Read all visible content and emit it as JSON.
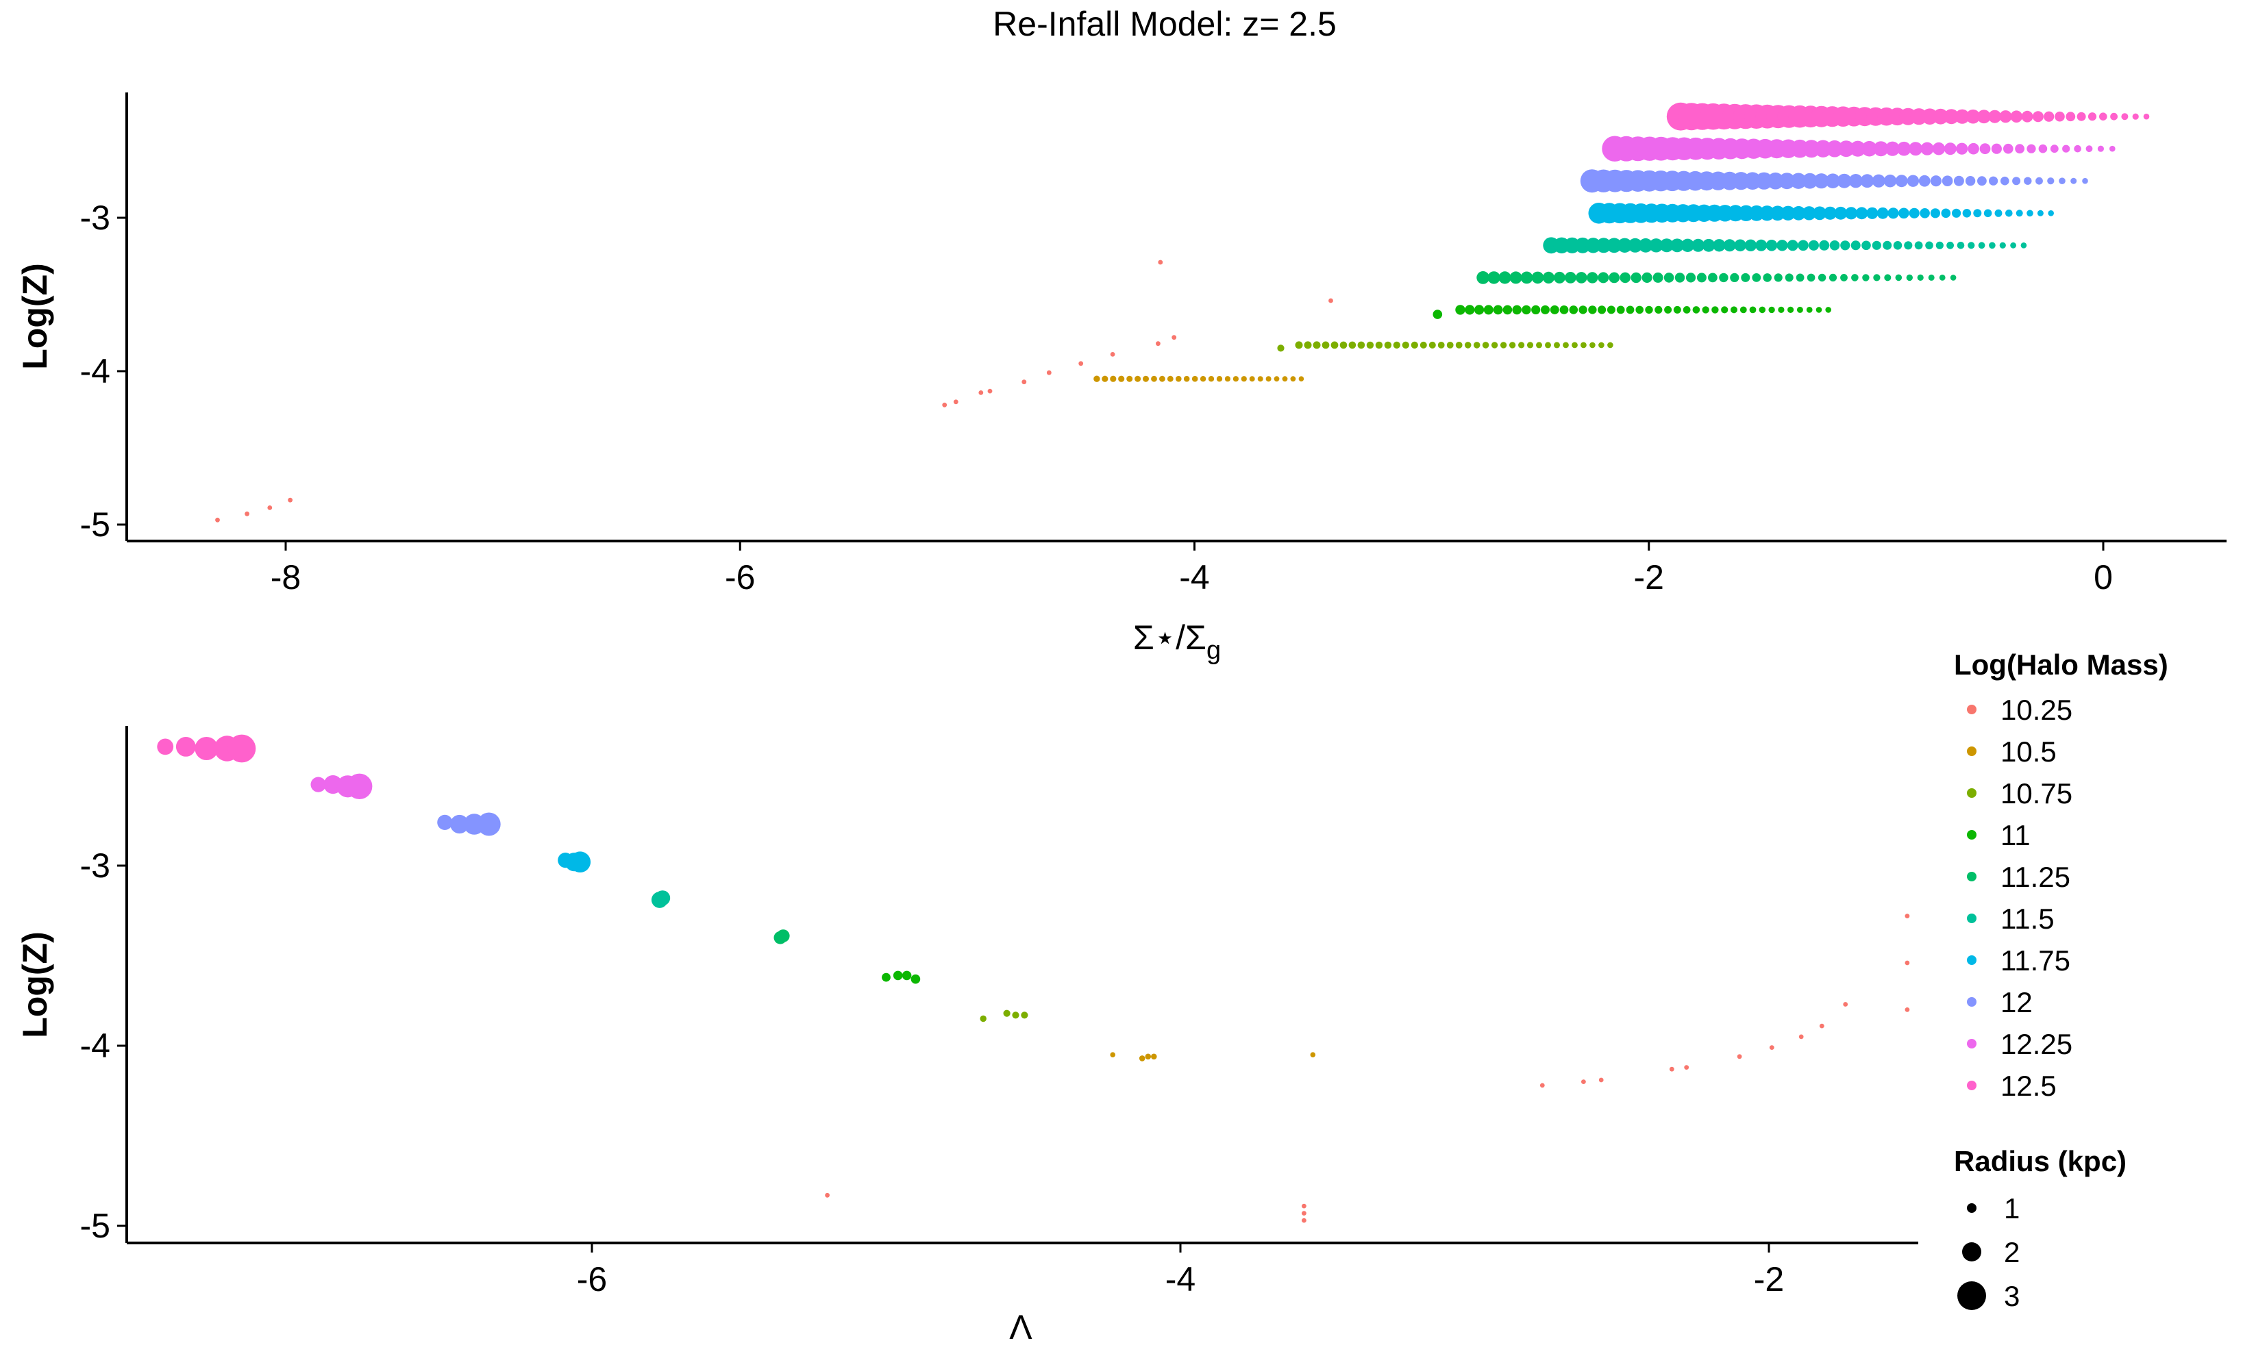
{
  "chart_data": [
    {
      "type": "scatter",
      "title": "Re-Infall Model: z= 2.5",
      "xlabel": "Σ⋆/Σg",
      "ylabel": "Log(Z)",
      "xlim": [
        -8.8,
        0.6
      ],
      "ylim": [
        -5.1,
        -2.2
      ],
      "xticks": [
        -8,
        -6,
        -4,
        -2,
        0
      ],
      "yticks": [
        -5,
        -4,
        -3
      ],
      "grid": false,
      "series": [
        {
          "name": "10.25",
          "color": "#F8766D",
          "points": [
            {
              "x": -8.3,
              "y": -4.97,
              "r": 0.4
            },
            {
              "x": -8.17,
              "y": -4.93,
              "r": 0.4
            },
            {
              "x": -8.07,
              "y": -4.89,
              "r": 0.4
            },
            {
              "x": -7.98,
              "y": -4.84,
              "r": 0.4
            },
            {
              "x": -5.1,
              "y": -4.22,
              "r": 0.4
            },
            {
              "x": -5.05,
              "y": -4.2,
              "r": 0.4
            },
            {
              "x": -4.94,
              "y": -4.14,
              "r": 0.4
            },
            {
              "x": -4.9,
              "y": -4.13,
              "r": 0.4
            },
            {
              "x": -4.75,
              "y": -4.07,
              "r": 0.4
            },
            {
              "x": -4.64,
              "y": -4.01,
              "r": 0.4
            },
            {
              "x": -4.5,
              "y": -3.95,
              "r": 0.4
            },
            {
              "x": -4.36,
              "y": -3.89,
              "r": 0.4
            },
            {
              "x": -4.16,
              "y": -3.82,
              "r": 0.4
            },
            {
              "x": -4.09,
              "y": -3.78,
              "r": 0.4
            },
            {
              "x": -4.15,
              "y": -3.29,
              "r": 0.4
            },
            {
              "x": -3.4,
              "y": -3.54,
              "r": 0.4
            }
          ]
        },
        {
          "name": "10.5",
          "color": "#CD9600",
          "line": {
            "x0": -4.43,
            "x1": -3.53,
            "y": -4.05,
            "r_start": 0.55,
            "r_end": 0.45,
            "n": 26
          }
        },
        {
          "name": "10.75",
          "color": "#7CAE00",
          "extra": [
            {
              "x": -3.62,
              "y": -3.85,
              "r": 0.6
            }
          ],
          "line": {
            "x0": -3.54,
            "x1": -2.17,
            "y": -3.83,
            "r_start": 0.65,
            "r_end": 0.5,
            "n": 36
          }
        },
        {
          "name": "11",
          "color": "#0CB702",
          "extra": [
            {
              "x": -2.93,
              "y": -3.63,
              "r": 0.8
            }
          ],
          "line": {
            "x0": -2.83,
            "x1": -1.21,
            "y": -3.6,
            "r_start": 0.85,
            "r_end": 0.5,
            "n": 40
          }
        },
        {
          "name": "11.25",
          "color": "#00BE67",
          "line": {
            "x0": -2.73,
            "x1": -0.66,
            "y": -3.39,
            "r_start": 1.1,
            "r_end": 0.5,
            "n": 44
          }
        },
        {
          "name": "11.5",
          "color": "#00C19A",
          "line": {
            "x0": -2.43,
            "x1": -0.35,
            "y": -3.18,
            "r_start": 1.4,
            "r_end": 0.5,
            "n": 46
          }
        },
        {
          "name": "11.75",
          "color": "#00B8E7",
          "line": {
            "x0": -2.22,
            "x1": -0.23,
            "y": -2.97,
            "r_start": 1.8,
            "r_end": 0.5,
            "n": 44
          }
        },
        {
          "name": "12",
          "color": "#8494FF",
          "line": {
            "x0": -2.25,
            "x1": -0.08,
            "y": -2.76,
            "r_start": 2.0,
            "r_end": 0.5,
            "n": 44
          }
        },
        {
          "name": "12.25",
          "color": "#ED68ED",
          "line": {
            "x0": -2.15,
            "x1": 0.04,
            "y": -2.55,
            "r_start": 2.2,
            "r_end": 0.5,
            "n": 44
          }
        },
        {
          "name": "12.5",
          "color": "#FF61CC",
          "line": {
            "x0": -1.86,
            "x1": 0.19,
            "y": -2.34,
            "r_start": 2.4,
            "r_end": 0.5,
            "n": 44
          }
        }
      ]
    },
    {
      "type": "scatter",
      "title": "",
      "xlabel": "Λ",
      "ylabel": "Log(Z)",
      "xlim": [
        -7.65,
        -1.5
      ],
      "ylim": [
        -5.1,
        -2.2
      ],
      "xticks": [
        -6,
        -4,
        -2
      ],
      "yticks": [
        -5,
        -4,
        -3
      ],
      "grid": false,
      "series": [
        {
          "name": "10.25",
          "color": "#F8766D",
          "points": [
            {
              "x": -5.2,
              "y": -4.83,
              "r": 0.4
            },
            {
              "x": -3.58,
              "y": -4.89,
              "r": 0.4
            },
            {
              "x": -3.58,
              "y": -4.93,
              "r": 0.4
            },
            {
              "x": -3.58,
              "y": -4.97,
              "r": 0.4
            },
            {
              "x": -2.77,
              "y": -4.22,
              "r": 0.4
            },
            {
              "x": -2.63,
              "y": -4.2,
              "r": 0.4
            },
            {
              "x": -2.57,
              "y": -4.19,
              "r": 0.4
            },
            {
              "x": -2.33,
              "y": -4.13,
              "r": 0.4
            },
            {
              "x": -2.28,
              "y": -4.12,
              "r": 0.4
            },
            {
              "x": -2.1,
              "y": -4.06,
              "r": 0.4
            },
            {
              "x": -1.99,
              "y": -4.01,
              "r": 0.4
            },
            {
              "x": -1.89,
              "y": -3.95,
              "r": 0.4
            },
            {
              "x": -1.82,
              "y": -3.89,
              "r": 0.4
            },
            {
              "x": -1.74,
              "y": -3.77,
              "r": 0.4
            },
            {
              "x": -1.53,
              "y": -3.28,
              "r": 0.4
            },
            {
              "x": -1.53,
              "y": -3.54,
              "r": 0.4
            },
            {
              "x": -1.53,
              "y": -3.8,
              "r": 0.4
            }
          ]
        },
        {
          "name": "10.5",
          "color": "#CD9600",
          "points": [
            {
              "x": -4.23,
              "y": -4.05,
              "r": 0.45
            },
            {
              "x": -4.13,
              "y": -4.07,
              "r": 0.5
            },
            {
              "x": -4.11,
              "y": -4.06,
              "r": 0.5
            },
            {
              "x": -4.09,
              "y": -4.06,
              "r": 0.5
            },
            {
              "x": -3.55,
              "y": -4.05,
              "r": 0.45
            }
          ]
        },
        {
          "name": "10.75",
          "color": "#7CAE00",
          "points": [
            {
              "x": -4.67,
              "y": -3.85,
              "r": 0.55
            },
            {
              "x": -4.59,
              "y": -3.82,
              "r": 0.6
            },
            {
              "x": -4.56,
              "y": -3.83,
              "r": 0.6
            },
            {
              "x": -4.53,
              "y": -3.83,
              "r": 0.6
            }
          ]
        },
        {
          "name": "11",
          "color": "#0CB702",
          "points": [
            {
              "x": -5.0,
              "y": -3.62,
              "r": 0.75
            },
            {
              "x": -4.96,
              "y": -3.61,
              "r": 0.8
            },
            {
              "x": -4.93,
              "y": -3.61,
              "r": 0.8
            },
            {
              "x": -4.9,
              "y": -3.63,
              "r": 0.8
            }
          ]
        },
        {
          "name": "11.25",
          "color": "#00BE67",
          "points": [
            {
              "x": -5.36,
              "y": -3.4,
              "r": 1.1
            },
            {
              "x": -5.35,
              "y": -3.39,
              "r": 1.1
            }
          ]
        },
        {
          "name": "11.5",
          "color": "#00C19A",
          "points": [
            {
              "x": -5.77,
              "y": -3.19,
              "r": 1.4
            },
            {
              "x": -5.76,
              "y": -3.18,
              "r": 1.3
            }
          ]
        },
        {
          "name": "11.75",
          "color": "#00B8E7",
          "points": [
            {
              "x": -6.09,
              "y": -2.97,
              "r": 1.3
            },
            {
              "x": -6.06,
              "y": -2.98,
              "r": 1.6
            },
            {
              "x": -6.04,
              "y": -2.98,
              "r": 1.8
            }
          ]
        },
        {
          "name": "12",
          "color": "#8494FF",
          "points": [
            {
              "x": -6.5,
              "y": -2.76,
              "r": 1.3
            },
            {
              "x": -6.45,
              "y": -2.77,
              "r": 1.6
            },
            {
              "x": -6.4,
              "y": -2.77,
              "r": 1.8
            },
            {
              "x": -6.35,
              "y": -2.77,
              "r": 2.0
            }
          ]
        },
        {
          "name": "12.25",
          "color": "#ED68ED",
          "points": [
            {
              "x": -6.93,
              "y": -2.55,
              "r": 1.3
            },
            {
              "x": -6.88,
              "y": -2.55,
              "r": 1.6
            },
            {
              "x": -6.83,
              "y": -2.56,
              "r": 1.9
            },
            {
              "x": -6.79,
              "y": -2.56,
              "r": 2.2
            }
          ]
        },
        {
          "name": "12.5",
          "color": "#FF61CC",
          "points": [
            {
              "x": -7.45,
              "y": -2.34,
              "r": 1.4
            },
            {
              "x": -7.38,
              "y": -2.34,
              "r": 1.7
            },
            {
              "x": -7.31,
              "y": -2.35,
              "r": 2.0
            },
            {
              "x": -7.24,
              "y": -2.35,
              "r": 2.2
            },
            {
              "x": -7.19,
              "y": -2.35,
              "r": 2.4
            }
          ]
        }
      ]
    }
  ],
  "legend": {
    "color_title": "Log(Halo Mass)",
    "color_items": [
      {
        "label": "10.25",
        "color": "#F8766D"
      },
      {
        "label": "10.5",
        "color": "#CD9600"
      },
      {
        "label": "10.75",
        "color": "#7CAE00"
      },
      {
        "label": "11",
        "color": "#0CB702"
      },
      {
        "label": "11.25",
        "color": "#00BE67"
      },
      {
        "label": "11.5",
        "color": "#00C19A"
      },
      {
        "label": "11.75",
        "color": "#00B8E7"
      },
      {
        "label": "12",
        "color": "#8494FF"
      },
      {
        "label": "12.25",
        "color": "#ED68ED"
      },
      {
        "label": "12.5",
        "color": "#FF61CC"
      }
    ],
    "size_title": "Radius (kpc)",
    "size_items": [
      {
        "label": "1",
        "r": 1
      },
      {
        "label": "2",
        "r": 2
      },
      {
        "label": "3",
        "r": 3
      }
    ],
    "placement": "right"
  }
}
